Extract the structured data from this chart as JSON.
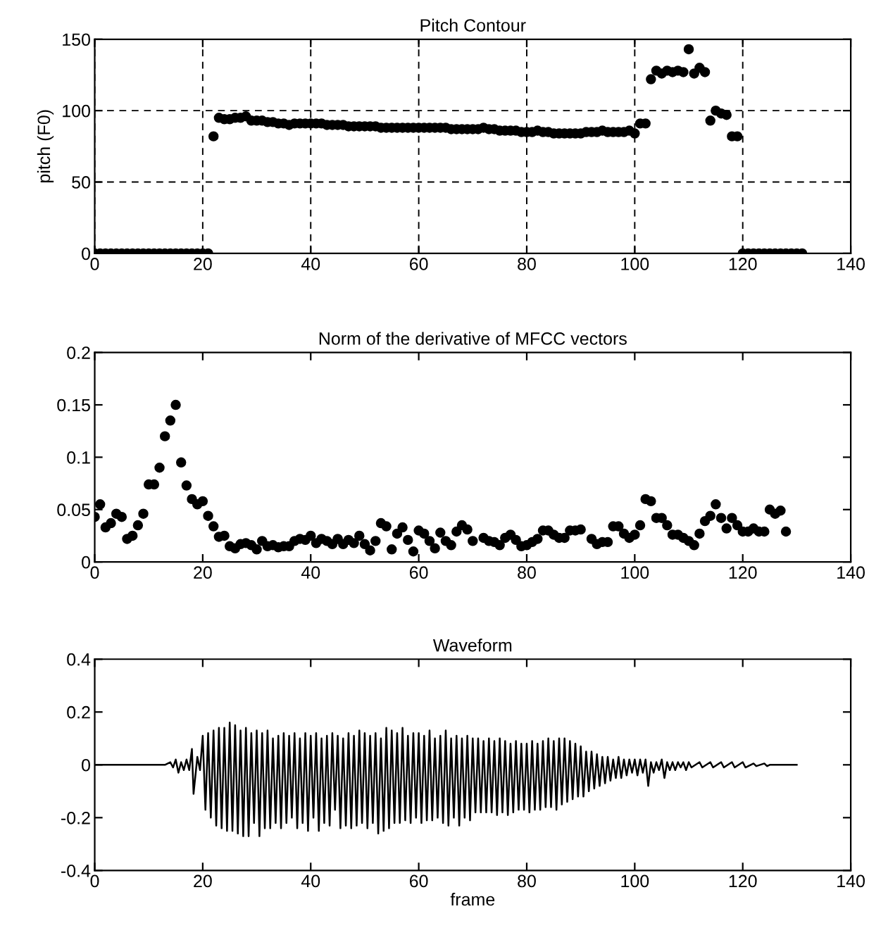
{
  "chart_data": [
    {
      "type": "scatter",
      "title": "Pitch Contour",
      "ylabel": "pitch (F0)",
      "xlim": [
        0,
        140
      ],
      "ylim": [
        0,
        150
      ],
      "xticks": [
        0,
        20,
        40,
        60,
        80,
        100,
        120,
        140
      ],
      "yticks": [
        0,
        50,
        100,
        150
      ],
      "grid": true,
      "marker": "circle",
      "series": [
        {
          "color": "#000000",
          "x": [
            0,
            1,
            2,
            3,
            4,
            5,
            6,
            7,
            8,
            9,
            10,
            11,
            12,
            13,
            14,
            15,
            16,
            17,
            18,
            19,
            20,
            21,
            22,
            23,
            24,
            25,
            26,
            27,
            28,
            29,
            30,
            31,
            32,
            33,
            34,
            35,
            36,
            37,
            38,
            39,
            40,
            41,
            42,
            43,
            44,
            45,
            46,
            47,
            48,
            49,
            50,
            51,
            52,
            53,
            54,
            55,
            56,
            57,
            58,
            59,
            60,
            61,
            62,
            63,
            64,
            65,
            66,
            67,
            68,
            69,
            70,
            71,
            72,
            73,
            74,
            75,
            76,
            77,
            78,
            79,
            80,
            81,
            82,
            83,
            84,
            85,
            86,
            87,
            88,
            89,
            90,
            91,
            92,
            93,
            94,
            95,
            96,
            97,
            98,
            99,
            100,
            101,
            102,
            103,
            104,
            105,
            106,
            107,
            108,
            109,
            110,
            111,
            112,
            113,
            114,
            115,
            116,
            117,
            118,
            119,
            120,
            121,
            122,
            123,
            124,
            125,
            126,
            127,
            128,
            129,
            130,
            131
          ],
          "values": [
            0,
            0,
            0,
            0,
            0,
            0,
            0,
            0,
            0,
            0,
            0,
            0,
            0,
            0,
            0,
            0,
            0,
            0,
            0,
            0,
            0,
            0,
            82,
            95,
            94,
            94,
            95,
            95,
            96,
            93,
            93,
            93,
            92,
            92,
            91,
            91,
            90,
            91,
            91,
            91,
            91,
            91,
            91,
            90,
            90,
            90,
            90,
            89,
            89,
            89,
            89,
            89,
            89,
            88,
            88,
            88,
            88,
            88,
            88,
            88,
            88,
            88,
            88,
            88,
            88,
            88,
            87,
            87,
            87,
            87,
            87,
            87,
            88,
            87,
            87,
            86,
            86,
            86,
            86,
            85,
            85,
            85,
            86,
            85,
            85,
            84,
            84,
            84,
            84,
            84,
            84,
            85,
            85,
            85,
            86,
            85,
            85,
            85,
            85,
            86,
            84,
            91,
            91,
            122,
            128,
            126,
            128,
            127,
            128,
            127,
            143,
            126,
            130,
            127,
            93,
            100,
            98,
            97,
            82,
            82,
            0,
            0,
            0,
            0,
            0,
            0,
            0,
            0,
            0,
            0,
            0,
            0
          ]
        }
      ]
    },
    {
      "type": "scatter",
      "title": "Norm of the derivative of MFCC vectors",
      "xlim": [
        0,
        140
      ],
      "ylim": [
        0,
        0.2
      ],
      "xticks": [
        0,
        20,
        40,
        60,
        80,
        100,
        120,
        140
      ],
      "yticks": [
        0,
        0.05,
        0.1,
        0.15,
        0.2
      ],
      "grid": false,
      "marker": "circle",
      "series": [
        {
          "color": "#000000",
          "x": [
            0,
            1,
            2,
            3,
            4,
            5,
            6,
            7,
            8,
            9,
            10,
            11,
            12,
            13,
            14,
            15,
            16,
            17,
            18,
            19,
            20,
            21,
            22,
            23,
            24,
            25,
            26,
            27,
            28,
            29,
            30,
            31,
            32,
            33,
            34,
            35,
            36,
            37,
            38,
            39,
            40,
            41,
            42,
            43,
            44,
            45,
            46,
            47,
            48,
            49,
            50,
            51,
            52,
            53,
            54,
            55,
            56,
            57,
            58,
            59,
            60,
            61,
            62,
            63,
            64,
            65,
            66,
            67,
            68,
            69,
            70,
            72,
            73,
            74,
            75,
            76,
            77,
            78,
            79,
            80,
            81,
            82,
            83,
            84,
            85,
            86,
            87,
            88,
            89,
            90,
            92,
            93,
            94,
            95,
            96,
            97,
            98,
            99,
            100,
            101,
            102,
            103,
            104,
            105,
            106,
            107,
            108,
            109,
            110,
            111,
            112,
            113,
            114,
            115,
            116,
            117,
            118,
            119,
            120,
            121,
            122,
            123,
            124,
            125,
            126,
            127,
            128
          ],
          "values": [
            0.043,
            0.055,
            0.033,
            0.037,
            0.046,
            0.043,
            0.022,
            0.025,
            0.035,
            0.046,
            0.074,
            0.074,
            0.09,
            0.12,
            0.135,
            0.15,
            0.095,
            0.073,
            0.06,
            0.055,
            0.058,
            0.044,
            0.034,
            0.024,
            0.025,
            0.015,
            0.013,
            0.017,
            0.018,
            0.016,
            0.012,
            0.02,
            0.015,
            0.016,
            0.014,
            0.015,
            0.015,
            0.02,
            0.022,
            0.021,
            0.025,
            0.018,
            0.022,
            0.02,
            0.017,
            0.022,
            0.017,
            0.021,
            0.018,
            0.025,
            0.017,
            0.011,
            0.02,
            0.037,
            0.034,
            0.012,
            0.027,
            0.033,
            0.021,
            0.01,
            0.03,
            0.027,
            0.02,
            0.013,
            0.028,
            0.02,
            0.016,
            0.029,
            0.035,
            0.031,
            0.02,
            0.023,
            0.02,
            0.019,
            0.016,
            0.023,
            0.026,
            0.021,
            0.015,
            0.016,
            0.019,
            0.022,
            0.03,
            0.03,
            0.026,
            0.023,
            0.023,
            0.03,
            0.03,
            0.031,
            0.022,
            0.017,
            0.019,
            0.019,
            0.034,
            0.034,
            0.027,
            0.023,
            0.026,
            0.035,
            0.06,
            0.058,
            0.042,
            0.042,
            0.035,
            0.026,
            0.026,
            0.023,
            0.02,
            0.016,
            0.027,
            0.039,
            0.044,
            0.055,
            0.042,
            0.032,
            0.042,
            0.035,
            0.029,
            0.029,
            0.032,
            0.029,
            0.029,
            0.05,
            0.046,
            0.049,
            0.029
          ]
        }
      ]
    },
    {
      "type": "line",
      "title": "Waveform",
      "xlabel": "frame",
      "xlim": [
        0,
        140
      ],
      "ylim": [
        -0.4,
        0.4
      ],
      "xticks": [
        0,
        20,
        40,
        60,
        80,
        100,
        120,
        140
      ],
      "yticks": [
        -0.4,
        -0.2,
        0,
        0.2,
        0.4
      ],
      "grid": false,
      "marker": "none",
      "line_style": "solid",
      "series": [
        {
          "color": "#000000",
          "x": [
            0,
            13,
            14,
            14.5,
            15,
            15.5,
            16,
            16.5,
            17,
            17.5,
            18,
            18.3,
            19,
            19.5,
            20,
            20.5,
            21,
            21.5,
            22,
            22.5,
            23,
            23.5,
            24,
            24.5,
            25,
            25.5,
            26,
            26.5,
            27,
            27.5,
            28,
            28.5,
            29,
            29.5,
            30,
            30.5,
            31,
            31.5,
            32,
            32.5,
            33,
            33.5,
            34,
            34.5,
            35,
            35.5,
            36,
            36.5,
            37,
            37.5,
            38,
            38.5,
            39,
            39.5,
            40,
            40.5,
            41,
            41.5,
            42,
            42.5,
            43,
            43.5,
            44,
            44.5,
            45,
            45.5,
            46,
            46.5,
            47,
            47.5,
            48,
            48.5,
            49,
            49.5,
            50,
            50.5,
            51,
            51.5,
            52,
            52.5,
            53,
            53.5,
            54,
            54.5,
            55,
            55.5,
            56,
            56.5,
            57,
            57.5,
            58,
            58.5,
            59,
            59.5,
            60,
            60.5,
            61,
            61.5,
            62,
            62.5,
            63,
            63.5,
            64,
            64.5,
            65,
            65.5,
            66,
            66.5,
            67,
            67.5,
            68,
            68.5,
            69,
            69.5,
            70,
            70.5,
            71,
            71.5,
            72,
            72.5,
            73,
            73.5,
            74,
            74.5,
            75,
            75.5,
            76,
            76.5,
            77,
            77.5,
            78,
            78.5,
            79,
            79.5,
            80,
            80.5,
            81,
            81.5,
            82,
            82.5,
            83,
            83.5,
            84,
            84.5,
            85,
            85.5,
            86,
            86.5,
            87,
            87.5,
            88,
            88.5,
            89,
            89.5,
            90,
            90.5,
            91,
            91.5,
            92,
            92.5,
            93,
            93.5,
            94,
            94.5,
            95,
            95.5,
            96,
            96.5,
            97,
            97.5,
            98,
            98.5,
            99,
            99.5,
            100,
            100.5,
            101,
            101.5,
            102,
            102.5,
            103,
            103.5,
            104,
            104.5,
            105,
            105.5,
            106,
            106.5,
            107,
            107.5,
            108,
            108.5,
            109,
            109.5,
            110,
            110.5,
            112,
            112.5,
            114,
            114.5,
            116,
            116.5,
            118,
            118.5,
            120,
            120.5,
            122,
            122.5,
            124,
            124.5,
            125,
            130
          ],
          "values": [
            0,
            0,
            0.01,
            -0.01,
            0.02,
            -0.03,
            0.01,
            -0.02,
            0.02,
            -0.02,
            0.06,
            -0.11,
            0.03,
            -0.02,
            0.11,
            -0.17,
            0.12,
            -0.2,
            0.13,
            -0.23,
            0.14,
            -0.24,
            0.14,
            -0.25,
            0.16,
            -0.25,
            0.15,
            -0.26,
            0.13,
            -0.27,
            0.14,
            -0.27,
            0.12,
            -0.22,
            0.13,
            -0.27,
            0.12,
            -0.24,
            0.13,
            -0.24,
            0.1,
            -0.22,
            0.11,
            -0.24,
            0.12,
            -0.22,
            0.11,
            -0.2,
            0.12,
            -0.24,
            0.1,
            -0.22,
            0.12,
            -0.25,
            0.11,
            -0.2,
            0.12,
            -0.25,
            0.1,
            -0.22,
            0.11,
            -0.23,
            0.12,
            -0.17,
            0.11,
            -0.24,
            0.1,
            -0.23,
            0.12,
            -0.24,
            0.11,
            -0.23,
            0.13,
            -0.22,
            0.12,
            -0.24,
            0.11,
            -0.22,
            0.12,
            -0.26,
            0.1,
            -0.25,
            0.14,
            -0.24,
            0.13,
            -0.22,
            0.12,
            -0.22,
            0.14,
            -0.21,
            0.11,
            -0.22,
            0.12,
            -0.2,
            0.12,
            -0.22,
            0.11,
            -0.21,
            0.13,
            -0.21,
            0.1,
            -0.2,
            0.11,
            -0.22,
            0.13,
            -0.23,
            0.1,
            -0.2,
            0.11,
            -0.23,
            0.1,
            -0.2,
            0.11,
            -0.21,
            0.1,
            -0.18,
            0.1,
            -0.18,
            0.09,
            -0.18,
            0.1,
            -0.18,
            0.09,
            -0.19,
            0.1,
            -0.18,
            0.09,
            -0.19,
            0.08,
            -0.18,
            0.09,
            -0.17,
            0.08,
            -0.17,
            0.08,
            -0.18,
            0.09,
            -0.17,
            0.08,
            -0.17,
            0.09,
            -0.16,
            0.1,
            -0.16,
            0.09,
            -0.17,
            0.1,
            -0.15,
            0.1,
            -0.14,
            0.09,
            -0.13,
            0.08,
            -0.12,
            0.07,
            -0.12,
            0.05,
            -0.1,
            0.05,
            -0.09,
            0.04,
            -0.08,
            0.03,
            -0.07,
            0.03,
            -0.06,
            0.02,
            -0.05,
            0.03,
            -0.05,
            0.02,
            -0.04,
            0.02,
            -0.03,
            0.02,
            -0.04,
            0.02,
            -0.03,
            0.02,
            -0.08,
            0.01,
            -0.03,
            0.01,
            -0.02,
            0.02,
            -0.05,
            0.01,
            -0.02,
            0.01,
            -0.02,
            0.01,
            -0.01,
            0.01,
            -0.02,
            0.01,
            -0.01,
            0.01,
            -0.01,
            0.01,
            -0.01,
            0.01,
            -0.01,
            0.01,
            -0.01,
            0.01,
            -0.01,
            0.005,
            -0.005,
            0.005,
            -0.005,
            0,
            0
          ]
        }
      ]
    }
  ]
}
